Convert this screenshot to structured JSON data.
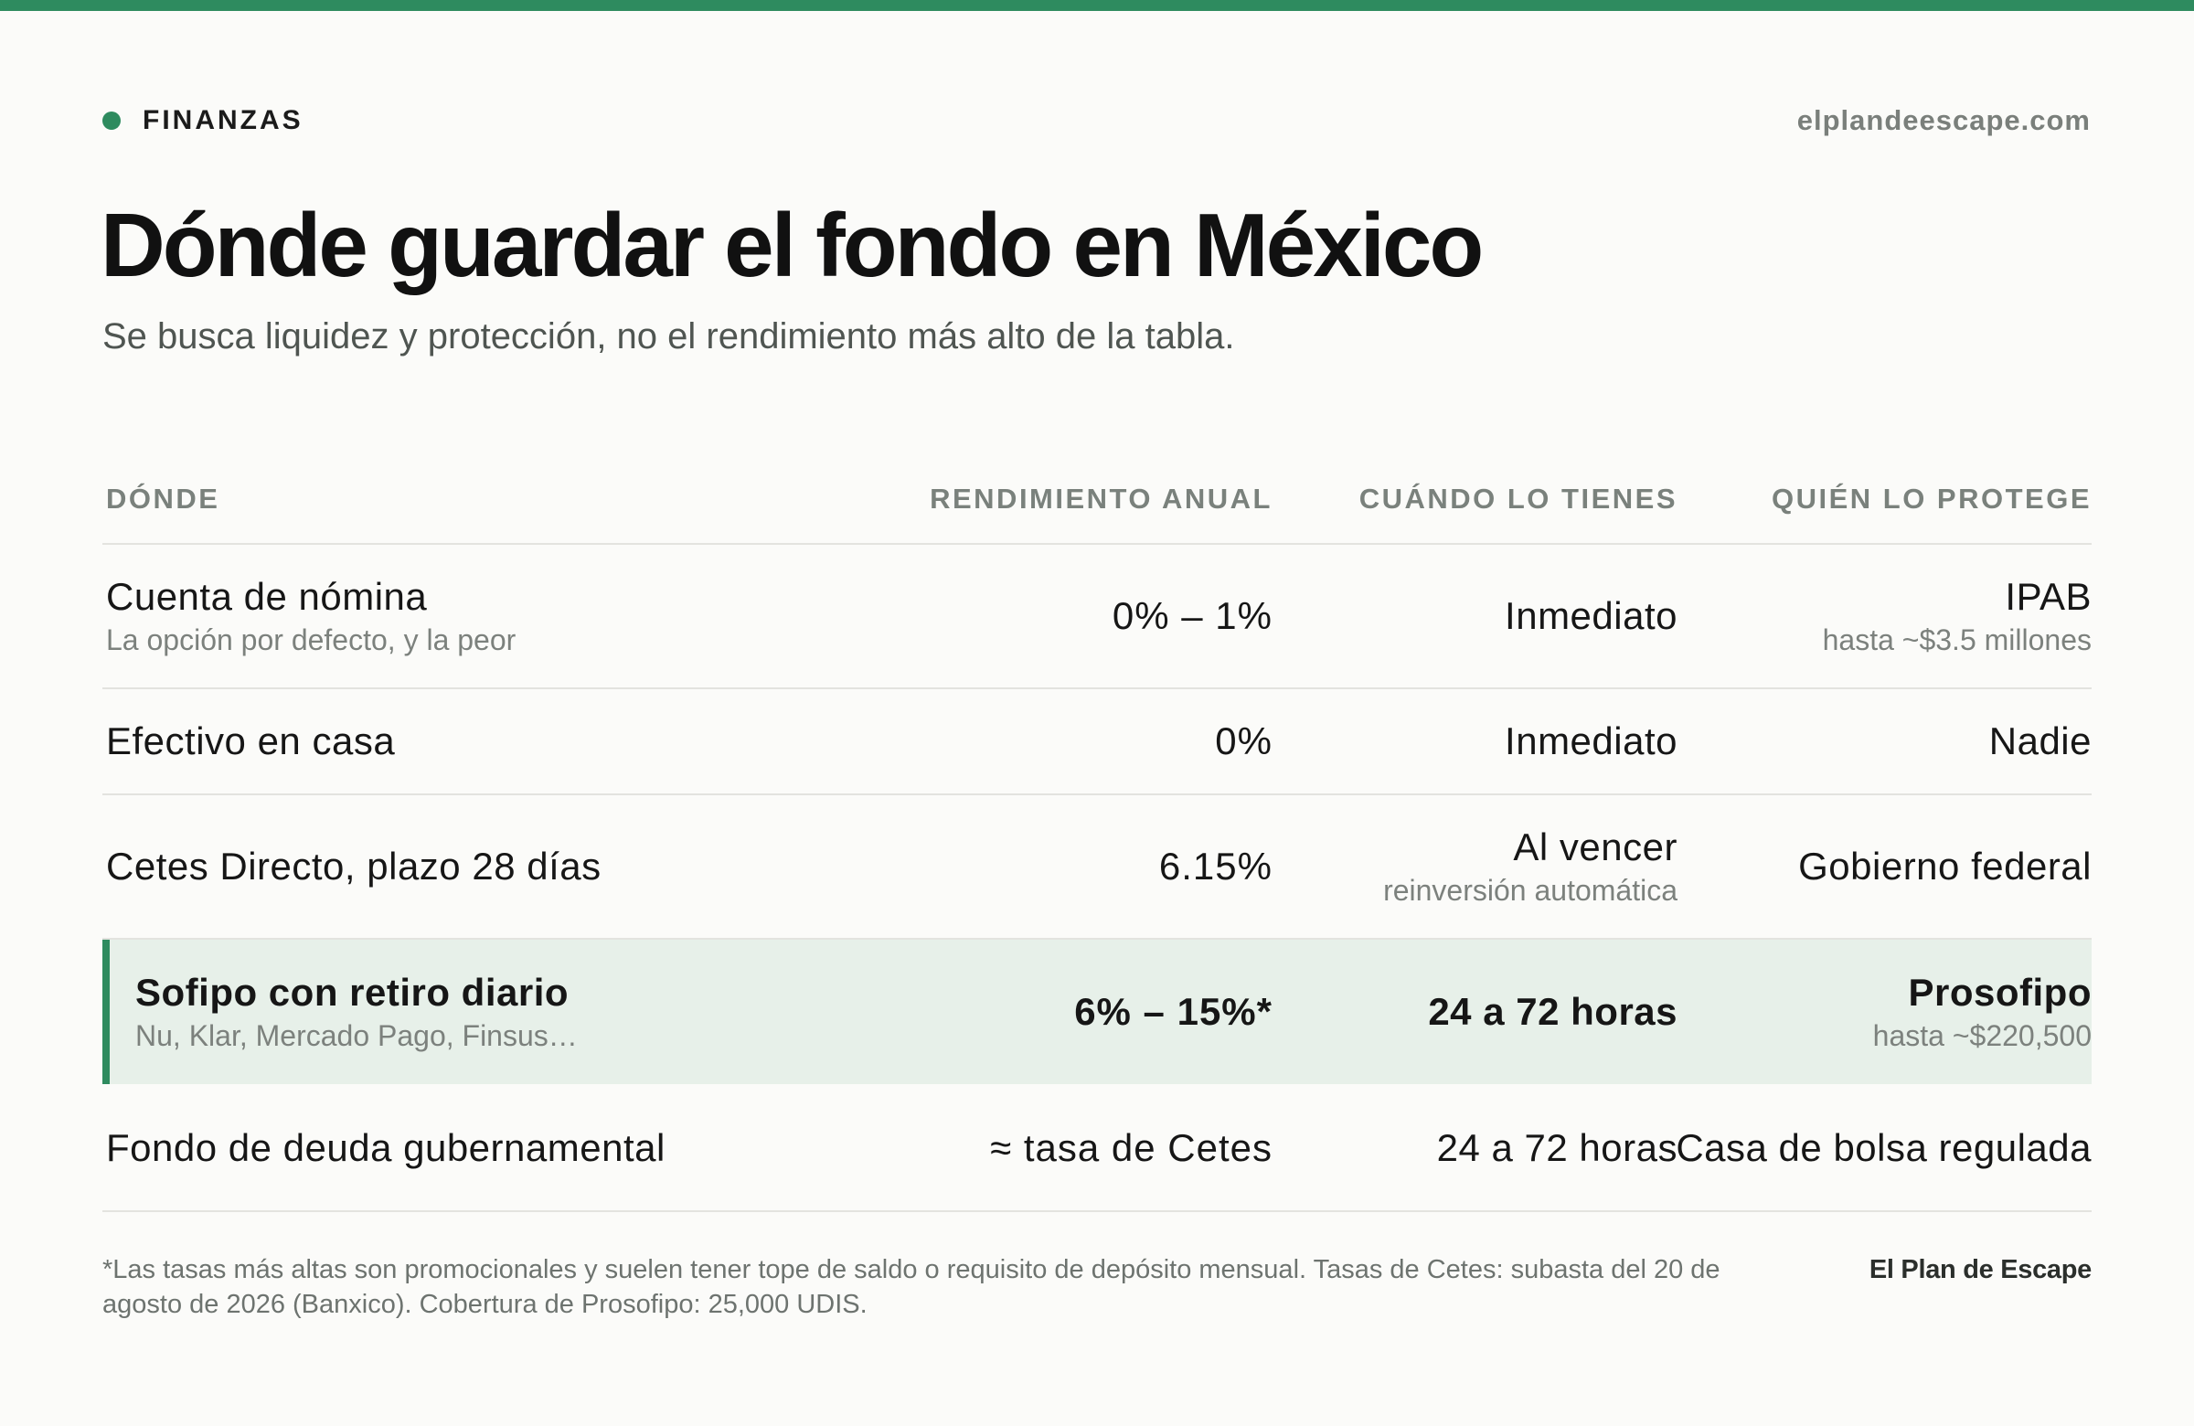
{
  "header": {
    "category": "FINANZAS",
    "site": "elplandeescape.com",
    "accent_color": "#2e8b5f"
  },
  "title": "Dónde guardar el fondo en México",
  "subtitle": "Se busca liquidez y protección, no el rendimiento más alto de la tabla.",
  "table": {
    "columns": [
      "DÓNDE",
      "RENDIMIENTO ANUAL",
      "CUÁNDO LO TIENES",
      "QUIÉN LO PROTEGE"
    ],
    "rows": [
      {
        "where": "Cuenta de nómina",
        "where_note": "La opción por defecto, y la peor",
        "yield": "0% – 1%",
        "when": "Inmediato",
        "when_note": "",
        "who": "IPAB",
        "who_note": "hasta ~$3.5 millones",
        "highlighted": false
      },
      {
        "where": "Efectivo en casa",
        "where_note": "",
        "yield": "0%",
        "when": "Inmediato",
        "when_note": "",
        "who": "Nadie",
        "who_note": "",
        "highlighted": false
      },
      {
        "where": "Cetes Directo, plazo 28 días",
        "where_note": "",
        "yield": "6.15%",
        "when": "Al vencer",
        "when_note": "reinversión automática",
        "who": "Gobierno federal",
        "who_note": "",
        "highlighted": false
      },
      {
        "where": "Sofipo con retiro diario",
        "where_note": "Nu, Klar, Mercado Pago, Finsus…",
        "yield": "6% – 15%*",
        "when": "24 a 72 horas",
        "when_note": "",
        "who": "Prosofipo",
        "who_note": "hasta ~$220,500",
        "highlighted": true
      },
      {
        "where": "Fondo de deuda gubernamental",
        "where_note": "",
        "yield": "≈ tasa de Cetes",
        "when": "24 a 72 horas",
        "when_note": "",
        "who": "Casa de bolsa regulada",
        "who_note": "",
        "highlighted": false
      }
    ]
  },
  "footer": {
    "footnote": "*Las tasas más altas son promocionales y suelen tener tope de saldo o requisito de depósito mensual. Tasas de Cetes: subasta del 20 de agosto de 2026 (Banxico). Cobertura de Prosofipo: 25,000 UDIS.",
    "brand": "El Plan de Escape"
  }
}
